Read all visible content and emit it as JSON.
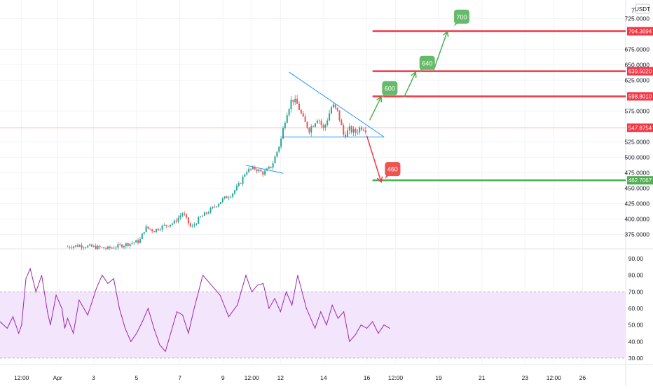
{
  "chart_data": [
    {
      "type": "candlestick",
      "title": "",
      "currency": "USDT",
      "ylim": [
        355,
        755
      ],
      "y_ticks": [
        {
          "value": 725,
          "label": "725.0000"
        },
        {
          "value": 675,
          "label": "675.0000"
        },
        {
          "value": 650,
          "label": "650.0000"
        },
        {
          "value": 625,
          "label": "625.0000"
        },
        {
          "value": 575,
          "label": "575.0000"
        },
        {
          "value": 525,
          "label": "525.0000"
        },
        {
          "value": 500,
          "label": "500.0000"
        },
        {
          "value": 475,
          "label": "475.0000"
        },
        {
          "value": 450,
          "label": "450.0000"
        },
        {
          "value": 425,
          "label": "425.0000"
        },
        {
          "value": 400,
          "label": "400.0000"
        },
        {
          "value": 375,
          "label": "375.0000"
        }
      ],
      "top_tick_label": "7",
      "x_ticks": [
        "12:00",
        "Apr",
        "3",
        "5",
        "7",
        "9",
        "12:00",
        "12",
        "14",
        "16",
        "12:00",
        "19",
        "21",
        "23",
        "12:00",
        "26"
      ],
      "x_tick_pos": [
        1,
        2.25,
        3.5,
        5,
        6.5,
        8,
        9,
        10,
        11.5,
        13,
        14,
        15.5,
        17,
        18.5,
        19.5,
        20.5
      ],
      "x_domain": [
        0.25,
        22
      ],
      "current_price": {
        "value": 547.8754,
        "label": "547.8754",
        "color": "#f23645"
      },
      "price_series": {
        "color_up": "#26a69a",
        "color_down": "#ef5350",
        "points": [
          [
            2.6,
            355
          ],
          [
            3.0,
            357
          ],
          [
            4.0,
            352
          ],
          [
            5.1,
            364
          ],
          [
            5.3,
            386
          ],
          [
            5.6,
            381
          ],
          [
            5.9,
            388
          ],
          [
            6.3,
            394
          ],
          [
            6.6,
            410
          ],
          [
            6.9,
            385
          ],
          [
            7.2,
            402
          ],
          [
            7.5,
            412
          ],
          [
            7.8,
            424
          ],
          [
            8.0,
            432
          ],
          [
            8.3,
            440
          ],
          [
            8.6,
            458
          ],
          [
            8.8,
            478
          ],
          [
            9.1,
            482
          ],
          [
            9.4,
            474
          ],
          [
            9.7,
            486
          ],
          [
            10.0,
            525
          ],
          [
            10.2,
            570
          ],
          [
            10.4,
            595
          ],
          [
            10.6,
            585
          ],
          [
            10.8,
            560
          ],
          [
            11.0,
            545
          ],
          [
            11.3,
            565
          ],
          [
            11.5,
            545
          ],
          [
            11.8,
            585
          ],
          [
            12.0,
            572
          ],
          [
            12.2,
            535
          ],
          [
            12.4,
            545
          ],
          [
            12.6,
            540
          ],
          [
            12.8,
            550
          ],
          [
            13.0,
            545
          ]
        ]
      },
      "levels": [
        {
          "value": 704.3694,
          "label": "704.3694",
          "color": "#f23645"
        },
        {
          "value": 639.502,
          "label": "639.5020",
          "color": "#f23645"
        },
        {
          "value": 598.801,
          "label": "598.8010",
          "color": "#f23645"
        },
        {
          "value": 462.7067,
          "label": "462.7067",
          "color": "#4caf50"
        }
      ],
      "triangle": {
        "color": "#2196f3",
        "upper": [
          [
            10.3,
            638
          ],
          [
            13.6,
            533
          ]
        ],
        "lower": [
          [
            10.0,
            533
          ],
          [
            13.6,
            533
          ]
        ],
        "flag": [
          [
            8.8,
            487
          ],
          [
            10.1,
            474
          ]
        ]
      },
      "projections": [
        {
          "from": [
            13.0,
            535
          ],
          "to": [
            13.5,
            460
          ],
          "color": "#f23645"
        },
        {
          "from": [
            13.1,
            560
          ],
          "to": [
            13.5,
            598
          ],
          "color": "#4caf50"
        },
        {
          "from": [
            14.3,
            598
          ],
          "to": [
            14.7,
            638
          ],
          "color": "#4caf50"
        },
        {
          "from": [
            15.3,
            638
          ],
          "to": [
            15.8,
            704
          ],
          "color": "#4caf50"
        }
      ],
      "targets": [
        {
          "label": "700",
          "x": 16.3,
          "y": 728,
          "color": "#66bb6a"
        },
        {
          "label": "640",
          "x": 15.1,
          "y": 653,
          "color": "#66bb6a"
        },
        {
          "label": "600",
          "x": 13.8,
          "y": 612,
          "color": "#66bb6a"
        },
        {
          "label": "460",
          "x": 13.9,
          "y": 481,
          "color": "#ef5350"
        }
      ]
    },
    {
      "type": "line",
      "title": "",
      "ylim": [
        27,
        93
      ],
      "y_ticks": [
        90,
        80,
        70,
        60,
        50,
        40,
        30
      ],
      "band": [
        30,
        70
      ],
      "band_color": "#f3e5fc",
      "line_color": "#9c27b0",
      "series": [
        {
          "values": [
            [
              0.25,
              52
            ],
            [
              0.5,
              48
            ],
            [
              0.7,
              55
            ],
            [
              0.9,
              45
            ],
            [
              1.0,
              50
            ],
            [
              1.15,
              78
            ],
            [
              1.3,
              84
            ],
            [
              1.5,
              70
            ],
            [
              1.7,
              80
            ],
            [
              1.9,
              58
            ],
            [
              2.0,
              50
            ],
            [
              2.2,
              68
            ],
            [
              2.4,
              60
            ],
            [
              2.5,
              48
            ],
            [
              2.6,
              54
            ],
            [
              2.8,
              45
            ],
            [
              3.0,
              65
            ],
            [
              3.3,
              56
            ],
            [
              3.6,
              72
            ],
            [
              3.8,
              80
            ],
            [
              4.0,
              75
            ],
            [
              4.2,
              78
            ],
            [
              4.4,
              60
            ],
            [
              4.6,
              48
            ],
            [
              4.8,
              40
            ],
            [
              5.0,
              45
            ],
            [
              5.2,
              52
            ],
            [
              5.4,
              60
            ],
            [
              5.6,
              48
            ],
            [
              5.8,
              38
            ],
            [
              6.0,
              34
            ],
            [
              6.2,
              46
            ],
            [
              6.4,
              58
            ],
            [
              6.6,
              56
            ],
            [
              6.8,
              45
            ],
            [
              7.0,
              60
            ],
            [
              7.3,
              80
            ],
            [
              7.6,
              74
            ],
            [
              7.9,
              68
            ],
            [
              8.2,
              55
            ],
            [
              8.5,
              62
            ],
            [
              8.8,
              80
            ],
            [
              9.0,
              70
            ],
            [
              9.2,
              74
            ],
            [
              9.4,
              75
            ],
            [
              9.6,
              60
            ],
            [
              9.8,
              66
            ],
            [
              10.0,
              58
            ],
            [
              10.2,
              70
            ],
            [
              10.4,
              62
            ],
            [
              10.6,
              80
            ],
            [
              10.9,
              60
            ],
            [
              11.2,
              48
            ],
            [
              11.4,
              58
            ],
            [
              11.6,
              50
            ],
            [
              11.8,
              62
            ],
            [
              12.0,
              54
            ],
            [
              12.2,
              58
            ],
            [
              12.4,
              40
            ],
            [
              12.6,
              44
            ],
            [
              12.8,
              50
            ],
            [
              13.0,
              48
            ],
            [
              13.2,
              52
            ],
            [
              13.4,
              45
            ],
            [
              13.6,
              50
            ],
            [
              13.8,
              48
            ]
          ]
        }
      ]
    }
  ]
}
